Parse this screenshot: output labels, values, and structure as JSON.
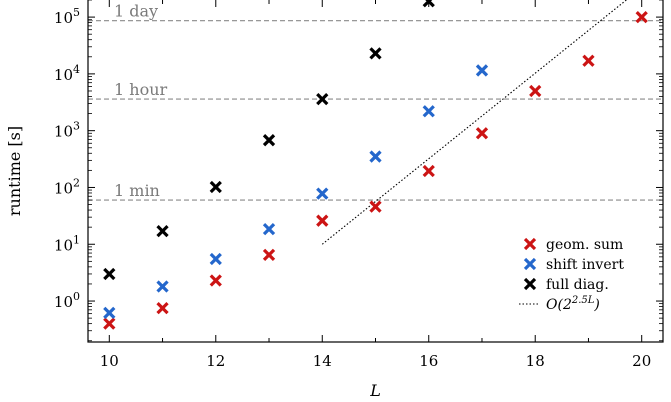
{
  "chart_data": {
    "type": "scatter",
    "xlabel": "L",
    "ylabel": "runtime [s]",
    "yscale": "log",
    "xlim": [
      9.6,
      20.4
    ],
    "ylim": [
      0.19,
      200000
    ],
    "x_ticks": [
      10,
      12,
      14,
      16,
      18,
      20
    ],
    "x_tick_labels": [
      "10",
      "12",
      "14",
      "16",
      "18",
      "20"
    ],
    "y_ticks": [
      1,
      10,
      100,
      1000,
      10000,
      100000
    ],
    "y_tick_exponents": [
      "0",
      "1",
      "2",
      "3",
      "4",
      "5"
    ],
    "y_tick_base": "10",
    "grid": false,
    "legend_position": "lower-right",
    "series": [
      {
        "name": "geom. sum",
        "color": "#cc1414",
        "marker": "x",
        "x": [
          10,
          11,
          12,
          13,
          14,
          15,
          16,
          17,
          18,
          19,
          20
        ],
        "y": [
          0.4,
          0.75,
          2.3,
          6.5,
          26,
          46,
          195,
          900,
          5000,
          17000,
          100000
        ]
      },
      {
        "name": "shift invert",
        "color": "#2467cc",
        "marker": "x",
        "x": [
          10,
          11,
          12,
          13,
          14,
          15,
          16,
          17
        ],
        "y": [
          0.62,
          1.8,
          5.5,
          18.5,
          78,
          350,
          2200,
          11500
        ]
      },
      {
        "name": "full diag.",
        "color": "#000000",
        "marker": "x",
        "x": [
          10,
          11,
          12,
          13,
          14,
          15,
          16
        ],
        "y": [
          3.0,
          17,
          102,
          680,
          3600,
          23000,
          190000
        ]
      }
    ],
    "fit_line": {
      "name": "O(2^{2.5L})",
      "label_main": "O(2",
      "label_exp": "2.5L",
      "label_close": ")",
      "style": "dotted",
      "color": "#000000",
      "x": [
        14,
        20
      ],
      "y": [
        10,
        330000
      ]
    },
    "reference_lines": [
      {
        "label": "1 day",
        "value": 86400
      },
      {
        "label": "1 hour",
        "value": 3600
      },
      {
        "label": "1 min",
        "value": 60
      }
    ]
  }
}
